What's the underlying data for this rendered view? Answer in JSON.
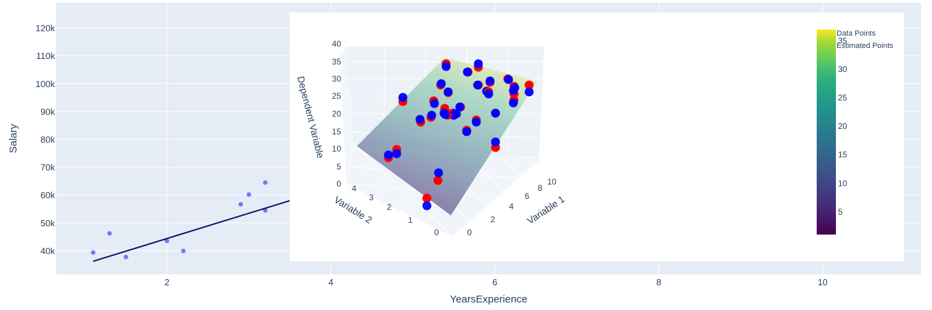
{
  "chart_data": [
    {
      "type": "scatter",
      "xlabel": "YearsExperience",
      "ylabel": "Salary",
      "xlim": [
        0.65,
        11.2
      ],
      "ylim": [
        31500,
        129000
      ],
      "x_ticks": [
        {
          "value": 2,
          "label": "2"
        },
        {
          "value": 4,
          "label": "4"
        },
        {
          "value": 6,
          "label": "6"
        },
        {
          "value": 8,
          "label": "8"
        },
        {
          "value": 10,
          "label": "10"
        }
      ],
      "y_ticks": [
        {
          "value": 40000,
          "label": "40k"
        },
        {
          "value": 50000,
          "label": "50k"
        },
        {
          "value": 60000,
          "label": "60k"
        },
        {
          "value": 70000,
          "label": "70k"
        },
        {
          "value": 80000,
          "label": "80k"
        },
        {
          "value": 90000,
          "label": "90k"
        },
        {
          "value": 100000,
          "label": "100k"
        },
        {
          "value": 110000,
          "label": "110k"
        },
        {
          "value": 120000,
          "label": "120k"
        }
      ],
      "grid": true,
      "series": [
        {
          "mode": "markers",
          "color": "#636efa",
          "points": [
            {
              "x": 1.1,
              "y": 39343
            },
            {
              "x": 1.3,
              "y": 46205
            },
            {
              "x": 1.5,
              "y": 37731
            },
            {
              "x": 2.0,
              "y": 43525
            },
            {
              "x": 2.2,
              "y": 39891
            },
            {
              "x": 2.9,
              "y": 56642
            },
            {
              "x": 3.0,
              "y": 60150
            },
            {
              "x": 3.2,
              "y": 54445
            },
            {
              "x": 3.2,
              "y": 64445
            }
          ]
        },
        {
          "mode": "line",
          "color": "#0d0f66",
          "points": [
            {
              "x": 1.1,
              "y": 36188
            },
            {
              "x": 3.67,
              "y": 59500
            }
          ]
        }
      ]
    },
    {
      "type": "scatter3d",
      "xlabel": "Variable 1",
      "ylabel": "Variable 2",
      "zlabel": "Dependent Variable",
      "x_ticks": [
        "0",
        "2",
        "4",
        "6",
        "8",
        "10"
      ],
      "y_ticks": [
        "0",
        "1",
        "2",
        "3",
        "4"
      ],
      "z_ticks": [
        "0",
        "5",
        "10",
        "15",
        "20",
        "25",
        "30",
        "35",
        "40"
      ],
      "legend": [
        "Data Points",
        "Estimated Points"
      ],
      "colorbar": {
        "ticks": [
          "5",
          "10",
          "15",
          "20",
          "25",
          "30",
          "35"
        ],
        "range": [
          1,
          37
        ],
        "colorscale": "viridis"
      },
      "marker_colors": {
        "data": "#ff0000",
        "estimated": "#0000ff"
      }
    }
  ]
}
